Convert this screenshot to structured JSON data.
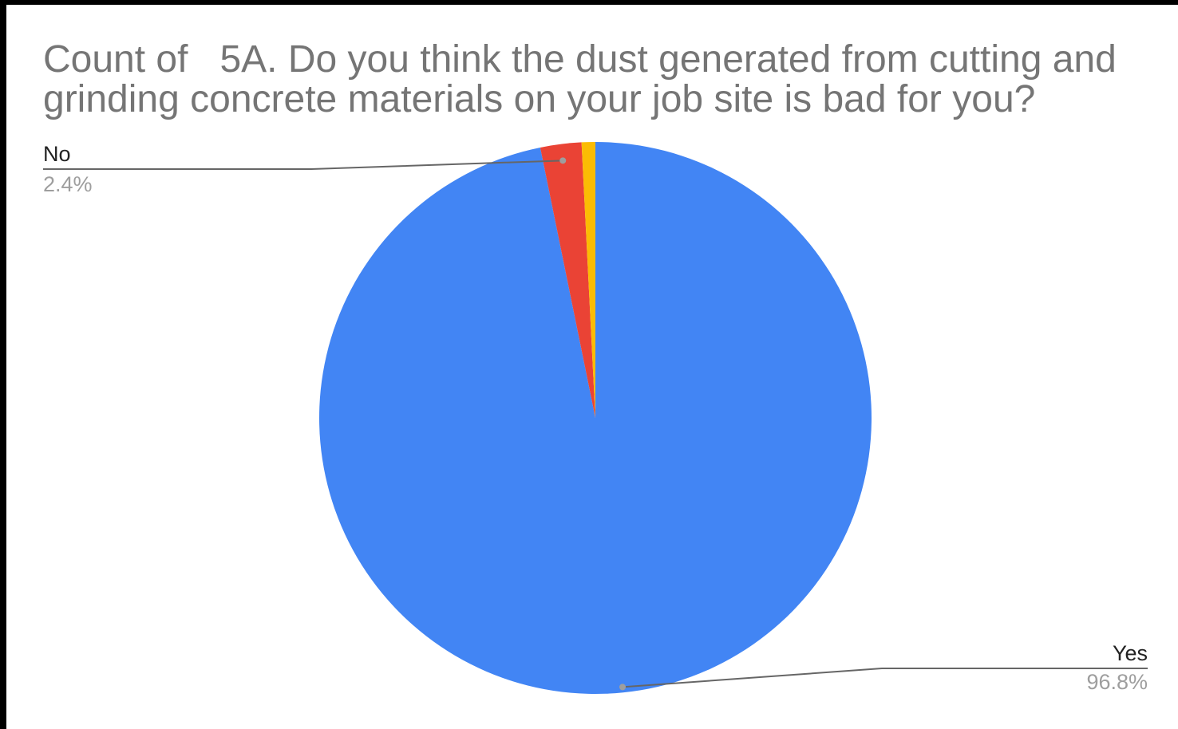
{
  "chart_data": {
    "type": "pie",
    "title": "Count of   5A. Do you think the dust generated from cutting and grinding concrete materials on your job site is bad for you?",
    "slices": [
      {
        "label": "Yes",
        "value": 96.8,
        "value_label": "96.8%",
        "color": "#4285f4",
        "callout": true
      },
      {
        "label": "No",
        "value": 2.4,
        "value_label": "2.4%",
        "color": "#ea4335",
        "callout": true
      },
      {
        "label": "",
        "value": 0.8,
        "value_label": "",
        "color": "#fbbc04",
        "callout": false
      }
    ],
    "start_angle": "12 o'clock",
    "direction": "clockwise",
    "legend": "none"
  }
}
